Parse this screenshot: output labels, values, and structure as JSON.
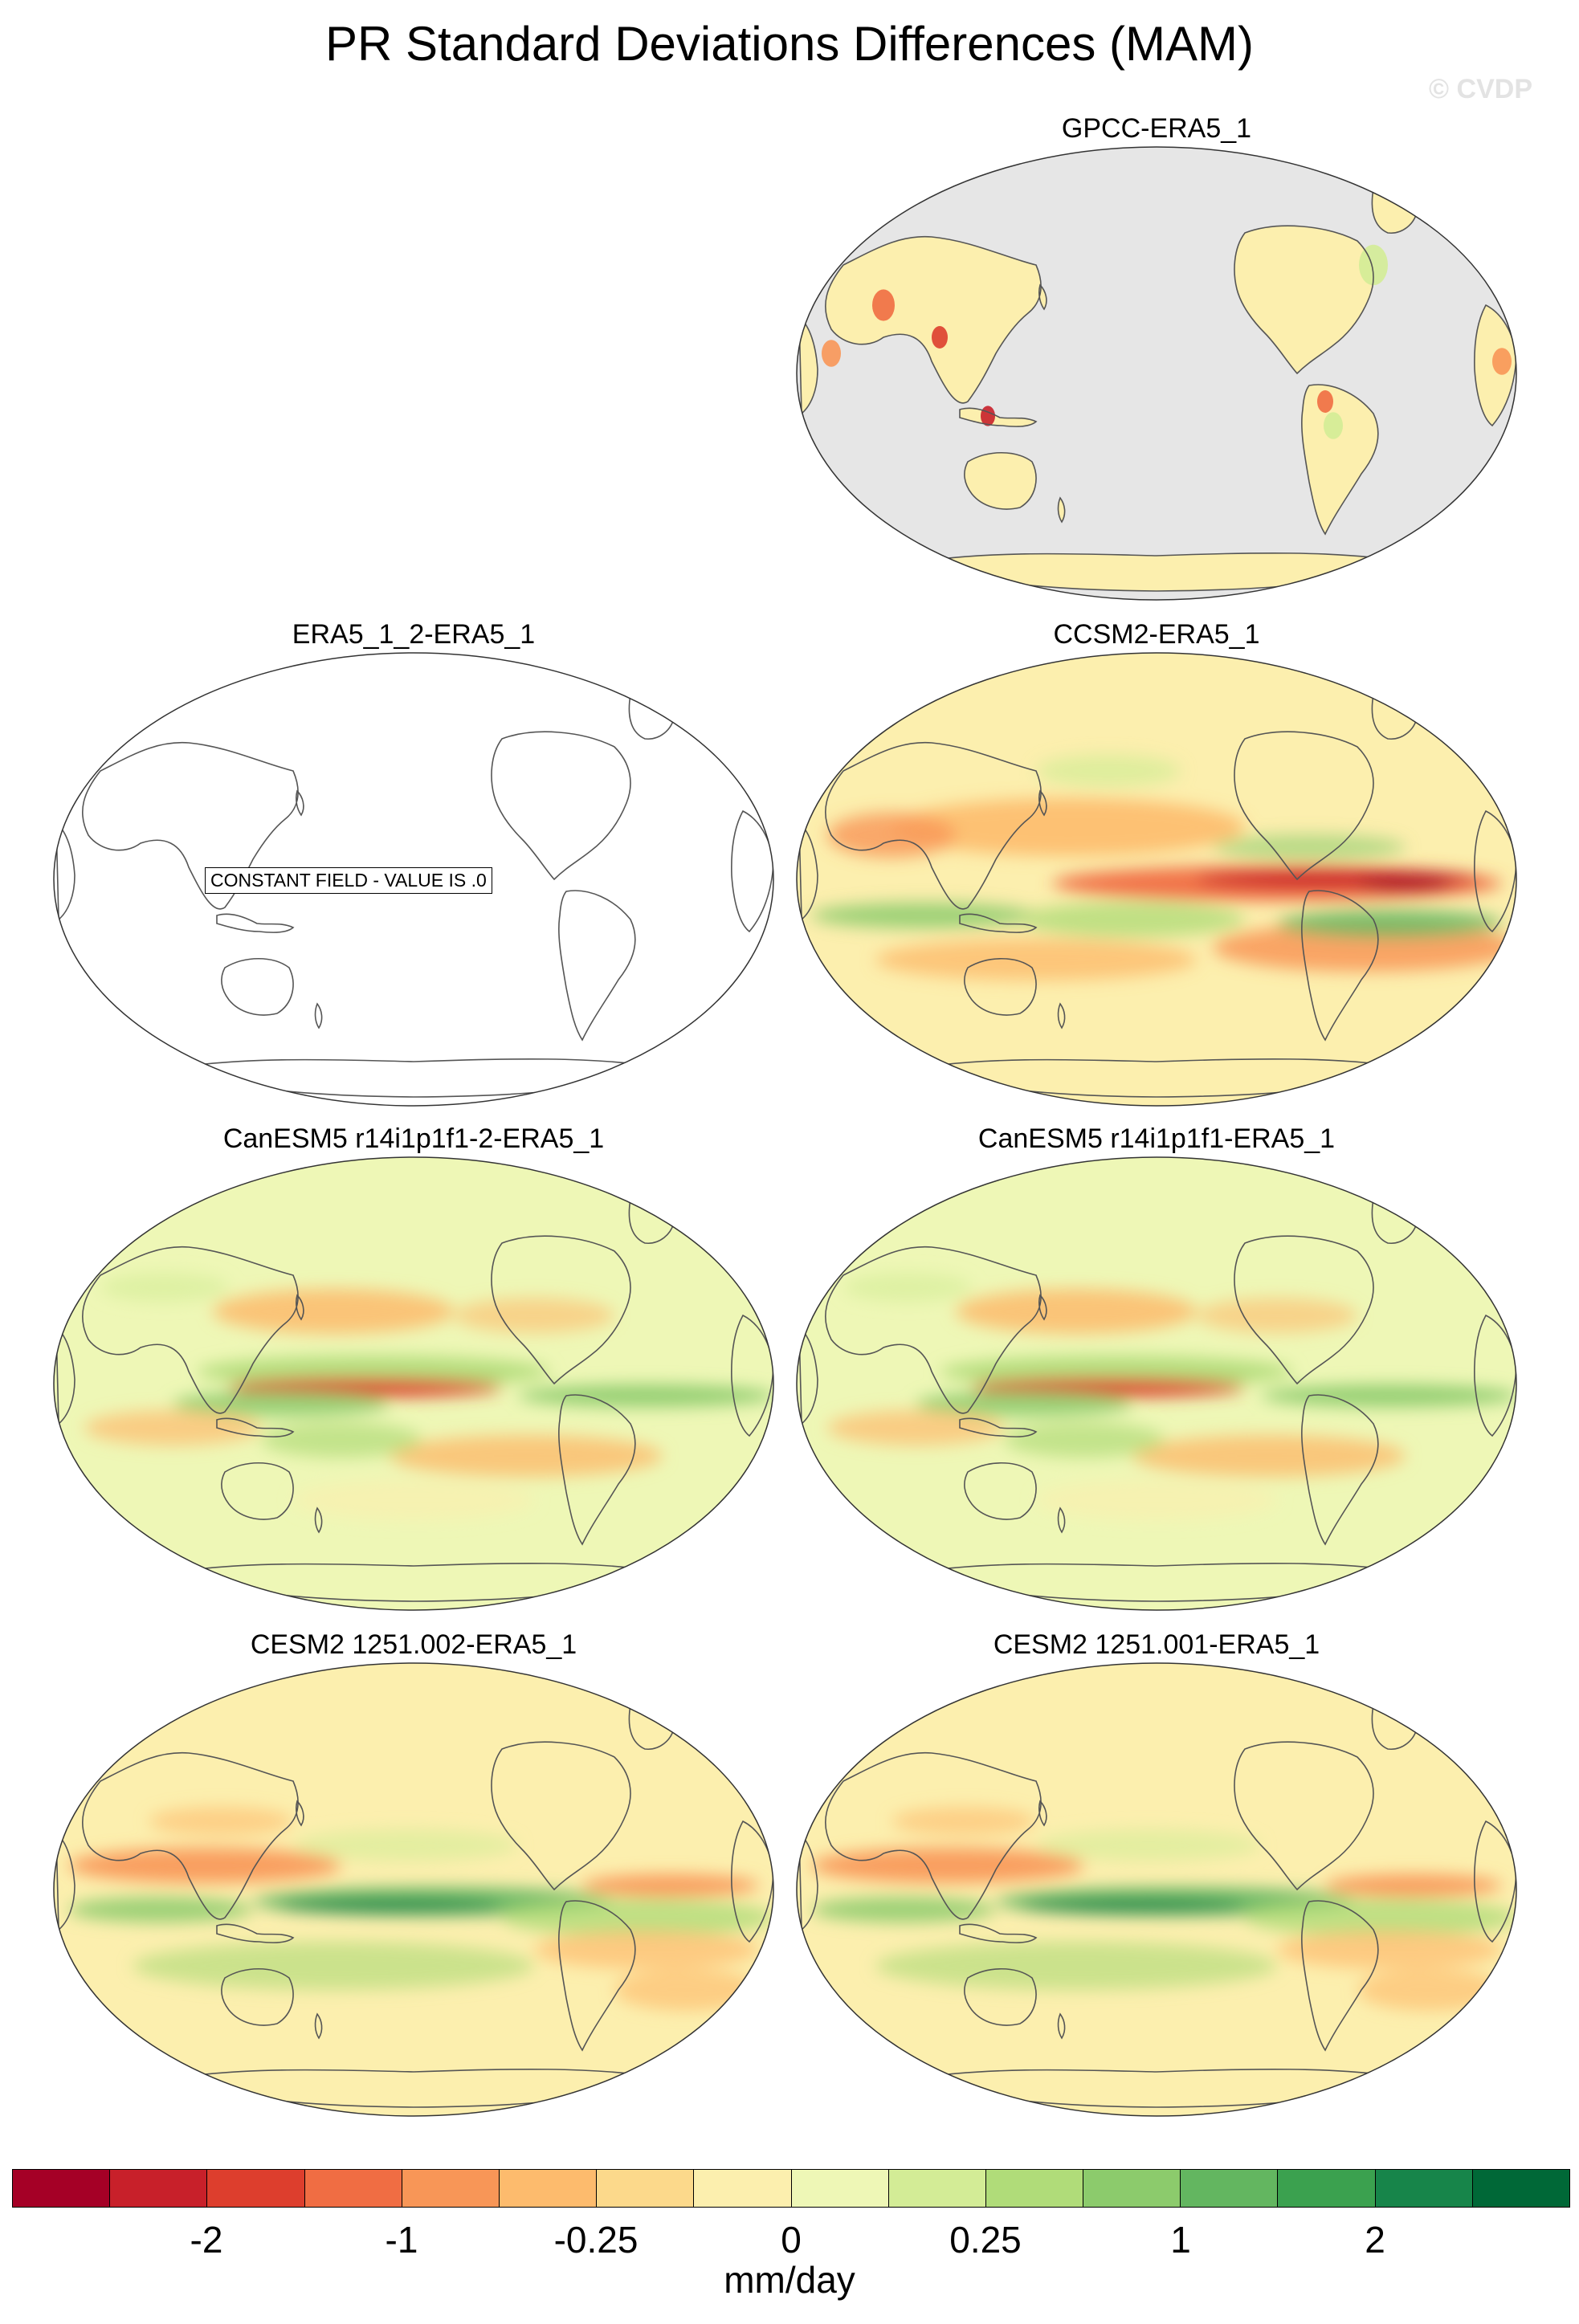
{
  "title": "PR Standard Deviations Differences (MAM)",
  "watermark": "© CVDP",
  "panels": [
    {
      "id": "gpcc",
      "label": "GPCC-ERA5_1",
      "style": "obs"
    },
    {
      "id": "era5-1-2",
      "label": "ERA5_1_2-ERA5_1",
      "style": "constant",
      "note": "CONSTANT FIELD - VALUE IS .0"
    },
    {
      "id": "ccsm2",
      "label": "CCSM2-ERA5_1",
      "style": "ccsm"
    },
    {
      "id": "canesm5-2",
      "label": "CanESM5 r14i1p1f1-2-ERA5_1",
      "style": "canesm"
    },
    {
      "id": "canesm5",
      "label": "CanESM5 r14i1p1f1-ERA5_1",
      "style": "canesm"
    },
    {
      "id": "cesm2-002",
      "label": "CESM2 1251.002-ERA5_1",
      "style": "cesm"
    },
    {
      "id": "cesm2-001",
      "label": "CESM2 1251.001-ERA5_1",
      "style": "cesm"
    }
  ],
  "colorbar": {
    "colors": [
      "#a50026",
      "#c8202a",
      "#dd3e2d",
      "#f06d43",
      "#f89657",
      "#fdbb6d",
      "#fcd98b",
      "#fcefae",
      "#eef7b6",
      "#d3ec96",
      "#b0dc79",
      "#8ccb6c",
      "#63b660",
      "#3ba14f",
      "#17854a",
      "#006837"
    ],
    "tick_labels": [
      "-2",
      "-1",
      "-0.25",
      "0",
      "0.25",
      "1",
      "2"
    ],
    "units": "mm/day"
  }
}
